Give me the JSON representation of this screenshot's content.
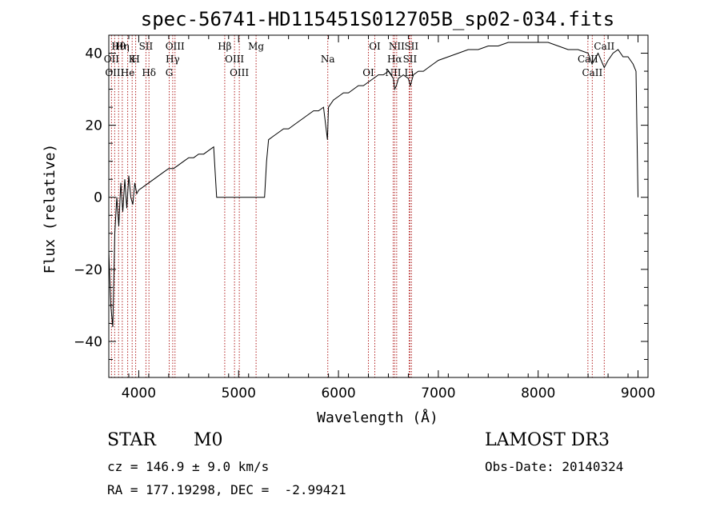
{
  "chart_data": {
    "type": "line",
    "title": "spec-56741-HD115451S012705B_sp02-034.fits",
    "xlabel": "Wavelength (Å)",
    "ylabel": "Flux (relative)",
    "xlim": [
      3700,
      9100
    ],
    "ylim": [
      -50,
      45
    ],
    "xticks": [
      4000,
      5000,
      6000,
      7000,
      8000,
      9000
    ],
    "xtick_labels": [
      "4000",
      "5000",
      "6000",
      "7000",
      "8000",
      "9000"
    ],
    "yticks": [
      -40,
      -20,
      0,
      20,
      40
    ],
    "ytick_labels": [
      "−40",
      "−20",
      "0",
      "20",
      "40"
    ],
    "grid": false,
    "series": [
      {
        "x": [
          3700,
          3720,
          3740,
          3760,
          3780,
          3800,
          3820,
          3840,
          3860,
          3880,
          3900,
          3920,
          3940,
          3960,
          3980,
          4000,
          4050,
          4100,
          4150,
          4200,
          4250,
          4300,
          4350,
          4400,
          4450,
          4500,
          4550,
          4600,
          4650,
          4700,
          4750,
          4780,
          4800,
          5000,
          5200,
          5260,
          5280,
          5300,
          5350,
          5400,
          5450,
          5500,
          5550,
          5600,
          5650,
          5700,
          5750,
          5800,
          5850,
          5890,
          5900,
          5950,
          6000,
          6050,
          6100,
          6150,
          6200,
          6250,
          6300,
          6350,
          6400,
          6450,
          6500,
          6550,
          6563,
          6580,
          6600,
          6650,
          6700,
          6720,
          6750,
          6800,
          6850,
          6900,
          6950,
          7000,
          7100,
          7200,
          7300,
          7400,
          7500,
          7600,
          7700,
          7800,
          7900,
          8000,
          8100,
          8200,
          8300,
          8400,
          8500,
          8540,
          8600,
          8662,
          8700,
          8750,
          8800,
          8850,
          8900,
          8950,
          8980,
          9000
        ],
        "y": [
          -15,
          -30,
          -36,
          -10,
          0,
          -8,
          4,
          -4,
          5,
          -3,
          6,
          0,
          -2,
          4,
          1,
          2,
          3,
          4,
          5,
          6,
          7,
          8,
          8,
          9,
          10,
          11,
          11,
          12,
          12,
          13,
          14,
          0,
          0,
          0,
          0,
          0,
          10,
          16,
          17,
          18,
          19,
          19,
          20,
          21,
          22,
          23,
          24,
          24,
          25,
          16,
          25,
          27,
          28,
          29,
          29,
          30,
          31,
          31,
          32,
          33,
          34,
          34,
          35,
          33,
          30,
          31,
          33,
          34,
          33,
          31,
          34,
          35,
          35,
          36,
          37,
          38,
          39,
          40,
          41,
          41,
          42,
          42,
          43,
          43,
          43,
          43,
          43,
          42,
          41,
          41,
          40,
          37,
          40,
          36,
          38,
          40,
          41,
          39,
          39,
          37,
          35,
          0
        ]
      }
    ],
    "lines": [
      {
        "name": "Hθ",
        "x": 3798
      },
      {
        "name": "OII",
        "x": 3727
      },
      {
        "name": "OIII",
        "x": 3759
      },
      {
        "name": "Hη",
        "x": 3835
      },
      {
        "name": "K",
        "x": 3934
      },
      {
        "name": "He",
        "x": 3889
      },
      {
        "name": "SII",
        "x": 4072
      },
      {
        "name": "H",
        "x": 3969
      },
      {
        "name": "Hδ",
        "x": 4102
      },
      {
        "name": "OIII",
        "x": 4363
      },
      {
        "name": "Hγ",
        "x": 4340
      },
      {
        "name": "G",
        "x": 4305
      },
      {
        "name": "Hβ",
        "x": 4861
      },
      {
        "name": "OIII",
        "x": 4959
      },
      {
        "name": "OIII",
        "x": 5007
      },
      {
        "name": "Mg",
        "x": 5175
      },
      {
        "name": "Na",
        "x": 5893
      },
      {
        "name": "OI",
        "x": 6300
      },
      {
        "name": "OI",
        "x": 6364
      },
      {
        "name": "Hα",
        "x": 6563
      },
      {
        "name": "NII",
        "x": 6548
      },
      {
        "name": "NII",
        "x": 6583
      },
      {
        "name": "SII",
        "x": 6716
      },
      {
        "name": "Li",
        "x": 6708
      },
      {
        "name": "SII",
        "x": 6731
      },
      {
        "name": "CaII",
        "x": 8498
      },
      {
        "name": "CaII",
        "x": 8542
      },
      {
        "name": "CaII",
        "x": 8662
      }
    ]
  },
  "info": {
    "class": "STAR",
    "subclass": "M0",
    "survey": "LAMOST DR3",
    "cz": "cz = 146.9 ± 9.0 km/s",
    "obs_date": "Obs-Date: 20140324",
    "coords": "RA = 177.19298, DEC =  -2.99421"
  },
  "colors": {
    "line": "#000000",
    "marker": "#b22222",
    "background": "#ffffff"
  }
}
